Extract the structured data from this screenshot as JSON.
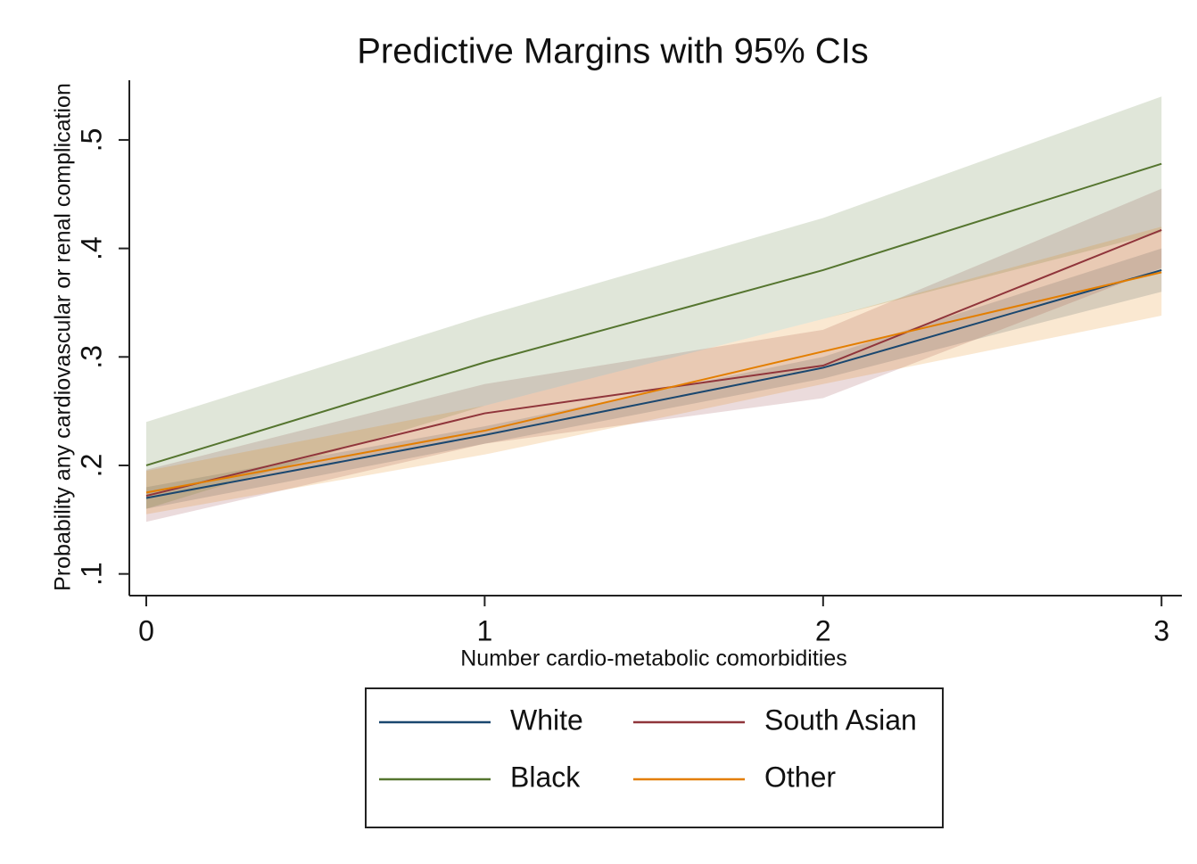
{
  "chart_data": {
    "type": "line",
    "title": "Predictive Margins with 95% CIs",
    "x_label": "Number cardio-metabolic comorbidities",
    "y_label": "Probability any cardiovascular or renal complication",
    "x": [
      0,
      1,
      2,
      3
    ],
    "xlim": [
      -0.05,
      3.06
    ],
    "ylim": [
      0.08,
      0.555
    ],
    "xticks": [
      0,
      1,
      2,
      3
    ],
    "yticks": [
      {
        "value": 0.1,
        "label": ".1"
      },
      {
        "value": 0.2,
        "label": ".2"
      },
      {
        "value": 0.3,
        "label": ".3"
      },
      {
        "value": 0.4,
        "label": ".4"
      },
      {
        "value": 0.5,
        "label": ".5"
      }
    ],
    "series": [
      {
        "name": "White",
        "color": "#1a476f",
        "values": [
          0.17,
          0.228,
          0.29,
          0.38
        ],
        "lower": [
          0.16,
          0.22,
          0.28,
          0.36
        ],
        "upper": [
          0.18,
          0.236,
          0.3,
          0.4
        ]
      },
      {
        "name": "South Asian",
        "color": "#90353b",
        "values": [
          0.172,
          0.248,
          0.292,
          0.417
        ],
        "lower": [
          0.148,
          0.22,
          0.262,
          0.382
        ],
        "upper": [
          0.196,
          0.275,
          0.325,
          0.455
        ]
      },
      {
        "name": "Black",
        "color": "#55752f",
        "values": [
          0.2,
          0.295,
          0.38,
          0.478
        ],
        "lower": [
          0.16,
          0.255,
          0.335,
          0.415
        ],
        "upper": [
          0.24,
          0.338,
          0.428,
          0.54
        ]
      },
      {
        "name": "Other",
        "color": "#e37e00",
        "values": [
          0.175,
          0.232,
          0.305,
          0.378
        ],
        "lower": [
          0.155,
          0.21,
          0.275,
          0.338
        ],
        "upper": [
          0.195,
          0.255,
          0.335,
          0.42
        ]
      }
    ]
  }
}
